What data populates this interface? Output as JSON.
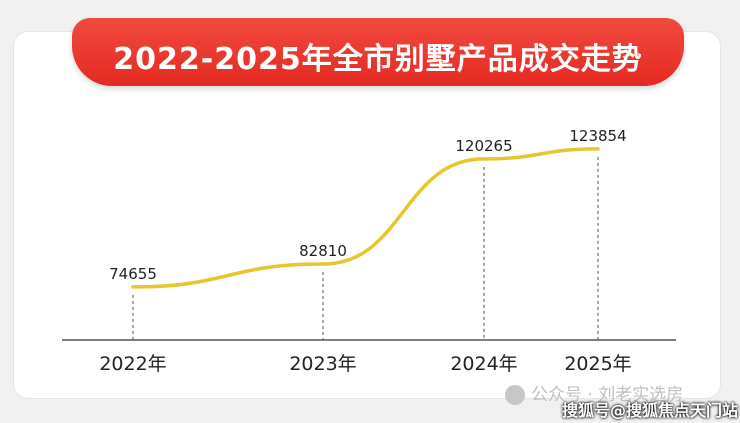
{
  "chart_data": {
    "type": "line",
    "title": "2022-2025年全市别墅产品成交走势",
    "categories": [
      "2022年",
      "2023年",
      "2024年",
      "2025年"
    ],
    "values": [
      74655,
      82810,
      120265,
      123854
    ],
    "ylim": [
      70000,
      127000
    ],
    "grid": false,
    "line_color": "#e6c62e"
  },
  "watermark": {
    "text": "公众号 · 刘老实选房"
  },
  "caption": {
    "text": "搜狐号@搜狐焦点天门站"
  }
}
